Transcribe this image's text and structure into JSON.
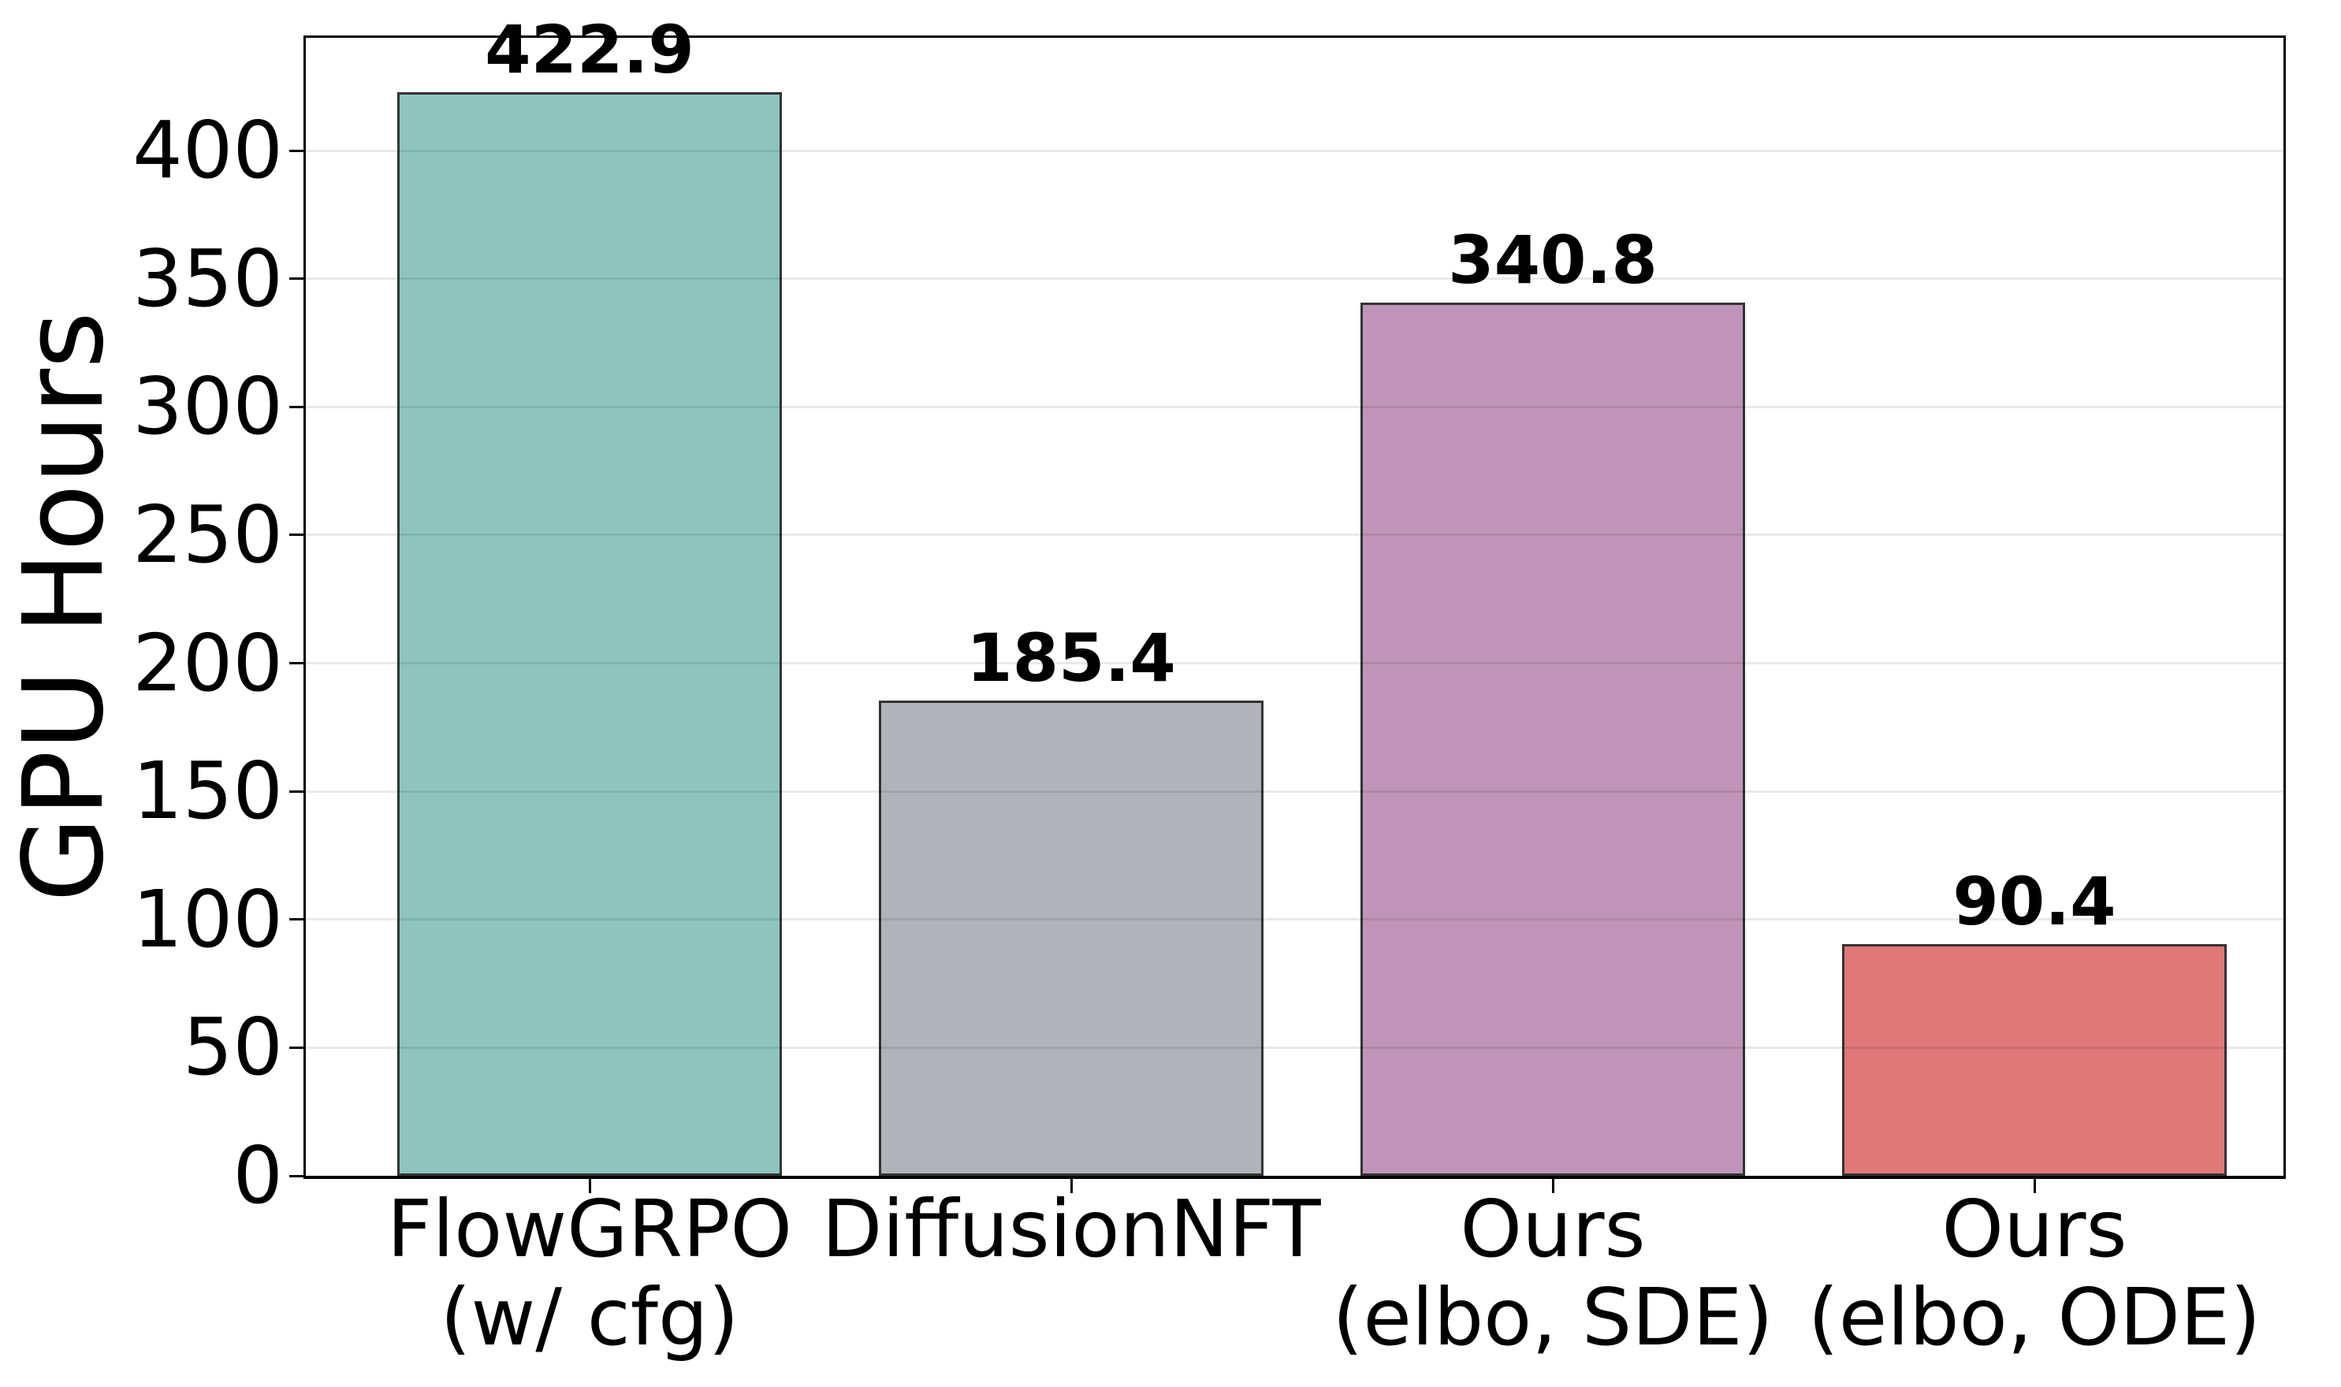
{
  "chart_data": {
    "type": "bar",
    "title": "",
    "xlabel": "",
    "ylabel": "GPU Hours",
    "categories": [
      "FlowGRPO\n(w/ cfg)",
      "DiffusionNFT",
      "Ours\n(elbo, SDE)",
      "Ours\n(elbo, ODE)"
    ],
    "values": [
      422.9,
      185.4,
      340.8,
      90.4
    ],
    "value_labels": [
      "422.9",
      "185.4",
      "340.8",
      "90.4"
    ],
    "bar_colors": [
      "#8FC4BE",
      "#B0B4B8",
      "#C094B8",
      "#E0787A"
    ],
    "bar_edge_color": "#333333",
    "yticks": [
      0,
      50,
      100,
      150,
      200,
      250,
      300,
      350,
      400
    ],
    "ytick_labels": [
      "0",
      "50",
      "100",
      "150",
      "200",
      "250",
      "300",
      "350",
      "400"
    ],
    "ylim": [
      0,
      444
    ],
    "grid": true,
    "gridline_color": "rgba(0,0,0,0.085)",
    "axis_color": "#000000",
    "background_color": "#ffffff",
    "legend": false
  }
}
